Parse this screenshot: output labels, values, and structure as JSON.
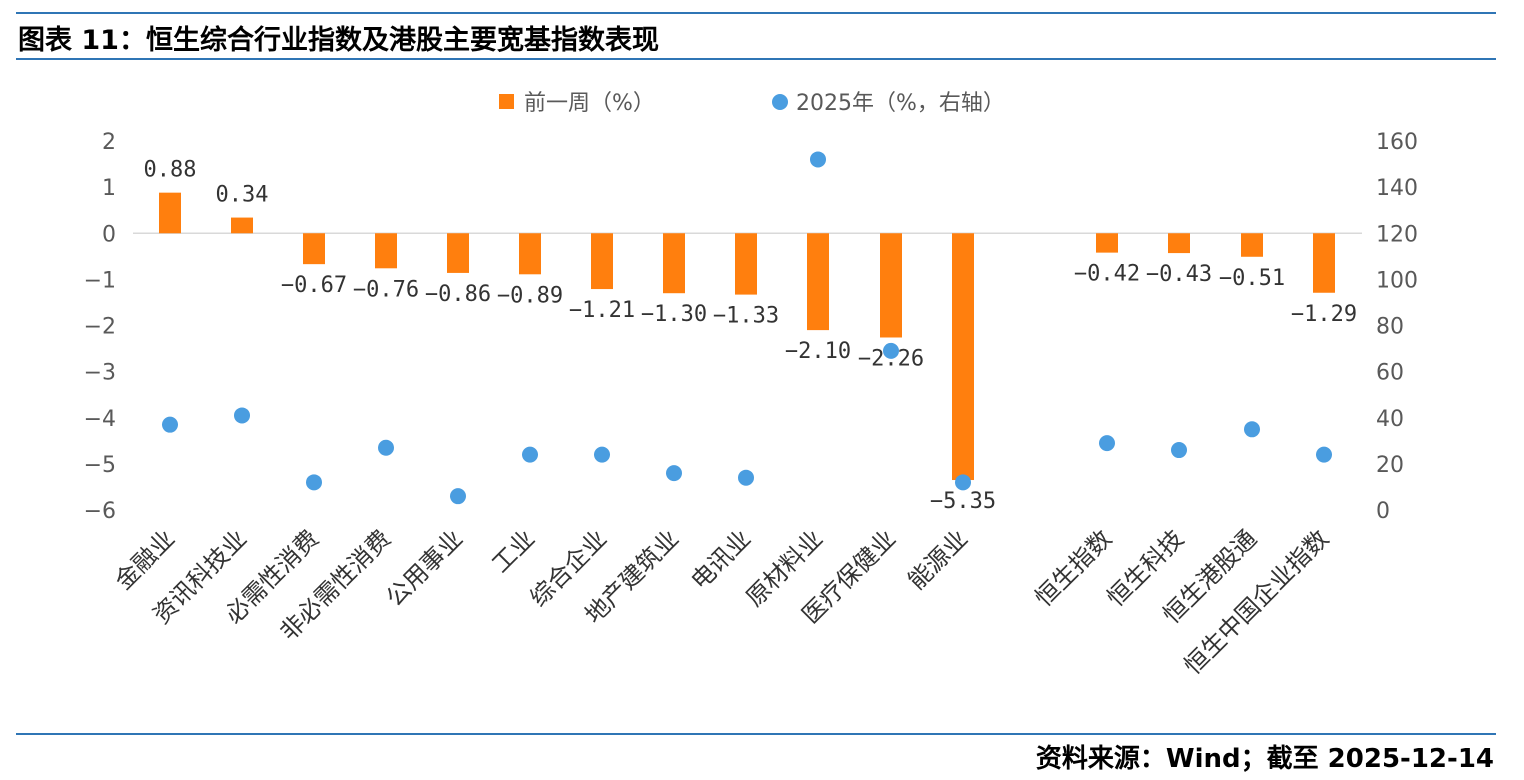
{
  "header": {
    "title": "图表 11：恒生综合行业指数及港股主要宽基指数表现"
  },
  "footer": {
    "source": "资料来源：Wind；截至 2025-12-14"
  },
  "colors": {
    "rule": "#2f75b5",
    "bar": "#ff7f0e",
    "dot": "#4a9de0"
  },
  "chart_data": {
    "type": "bar",
    "categories": [
      "金融业",
      "资讯科技业",
      "必需性消费",
      "非必需性消费",
      "公用事业",
      "工业",
      "综合企业",
      "地产建筑业",
      "电讯业",
      "原材料业",
      "医疗保健业",
      "能源业",
      "恒生指数",
      "恒生科技",
      "恒生港股通",
      "恒生中国企业指数"
    ],
    "series": [
      {
        "name": "前一周（%）",
        "type": "bar",
        "axis": "left",
        "values": [
          0.88,
          0.34,
          -0.67,
          -0.76,
          -0.86,
          -0.89,
          -1.21,
          -1.3,
          -1.33,
          -2.1,
          -2.26,
          -5.35,
          -0.42,
          -0.43,
          -0.51,
          -1.29
        ],
        "labels": [
          "0.88",
          "0.34",
          "−0.67",
          "−0.76",
          "−0.86",
          "−0.89",
          "−1.21",
          "−1.30",
          "−1.33",
          "−2.10",
          "−2.26",
          "−5.35",
          "−0.42",
          "−0.43",
          "−0.51",
          "−1.29"
        ]
      },
      {
        "name": "2025年（%，右轴）",
        "type": "scatter",
        "axis": "right",
        "values": [
          37,
          41,
          12,
          27,
          6,
          24,
          24,
          16,
          14,
          152,
          69,
          12,
          29,
          26,
          35,
          24
        ]
      }
    ],
    "ylim_left": [
      -6,
      2
    ],
    "yticks_left": [
      "2",
      "1",
      "0",
      "−1",
      "−2",
      "−3",
      "−4",
      "−5",
      "−6"
    ],
    "ylim_right": [
      0,
      160
    ],
    "yticks_right": [
      "160",
      "140",
      "120",
      "100",
      "80",
      "60",
      "40",
      "20",
      "0"
    ],
    "legend_position": "top-center",
    "grid": false
  }
}
